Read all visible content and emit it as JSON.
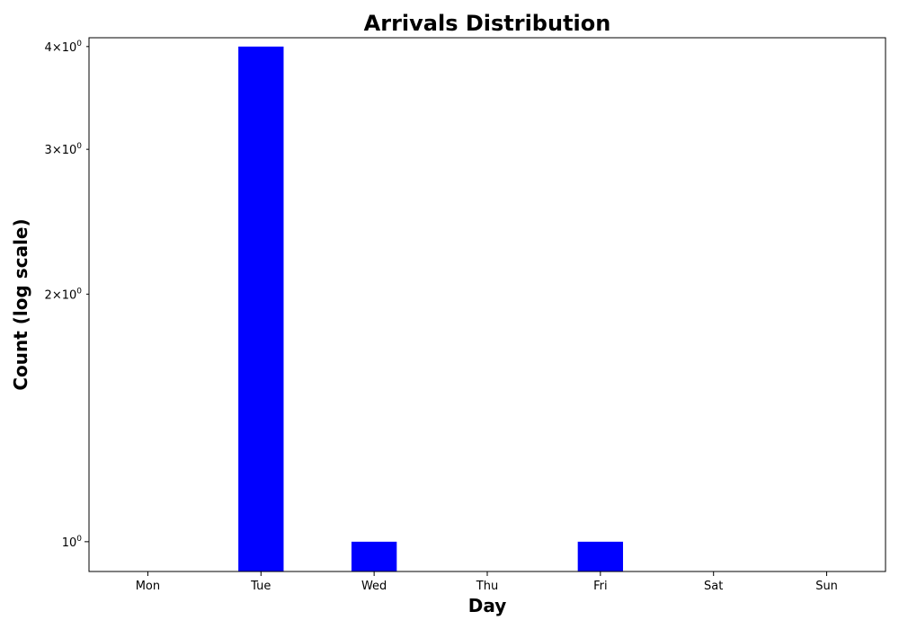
{
  "chart_data": {
    "type": "bar",
    "title": "Arrivals Distribution",
    "xlabel": "Day",
    "ylabel": "Count (log scale)",
    "yscale": "log",
    "categories": [
      "Mon",
      "Tue",
      "Wed",
      "Thu",
      "Fri",
      "Sat",
      "Sun"
    ],
    "values": [
      0,
      4,
      1,
      0,
      1,
      0,
      0
    ],
    "ylim": [
      0.92,
      4.1
    ],
    "yticks": [
      {
        "value": 1,
        "label": "10^0"
      },
      {
        "value": 2,
        "label": "2×10^0"
      },
      {
        "value": 3,
        "label": "3×10^0"
      },
      {
        "value": 4,
        "label": "4×10^0"
      }
    ],
    "bar_color": "#0000ff",
    "grid": false,
    "legend": "none"
  }
}
